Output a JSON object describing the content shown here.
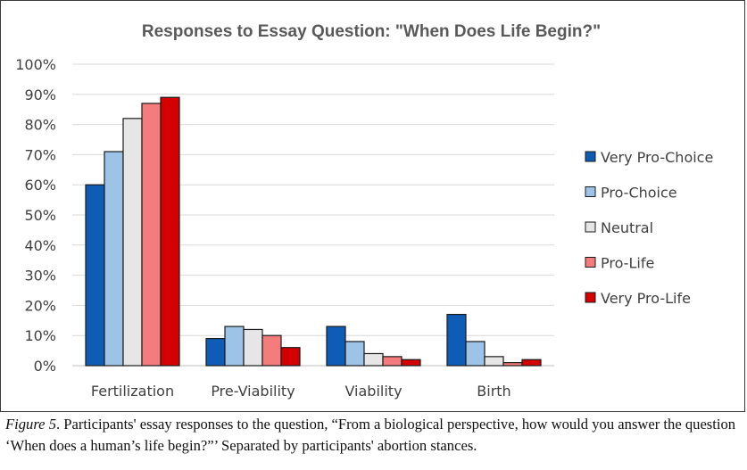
{
  "chart_data": {
    "type": "bar",
    "title": "Responses to Essay Question: \"When Does Life Begin?\"",
    "categories": [
      "Fertilization",
      "Pre-Viability",
      "Viability",
      "Birth"
    ],
    "series": [
      {
        "name": "Very Pro-Choice",
        "color": "#0e5cb5",
        "values": [
          60,
          9,
          13,
          17
        ]
      },
      {
        "name": "Pro-Choice",
        "color": "#9dc3e6",
        "values": [
          71,
          13,
          8,
          8
        ]
      },
      {
        "name": "Neutral",
        "color": "#e6e6e6",
        "values": [
          82,
          12,
          4,
          3
        ]
      },
      {
        "name": "Pro-Life",
        "color": "#f47c7c",
        "values": [
          87,
          10,
          3,
          1
        ]
      },
      {
        "name": "Very Pro-Life",
        "color": "#d40000",
        "values": [
          89,
          6,
          2,
          2
        ]
      }
    ],
    "ylim": [
      0,
      100
    ],
    "yticks": [
      "0%",
      "10%",
      "20%",
      "30%",
      "40%",
      "50%",
      "60%",
      "70%",
      "80%",
      "90%",
      "100%"
    ],
    "xlabel": "",
    "ylabel": "",
    "grid": true,
    "legend": "right"
  },
  "caption": {
    "label": "Figure 5",
    "text": ". Participants' essay responses to the question, “From a biological perspective, how would you answer the question ‘When does a human’s life begin?”’ Separated by participants' abortion stances."
  }
}
